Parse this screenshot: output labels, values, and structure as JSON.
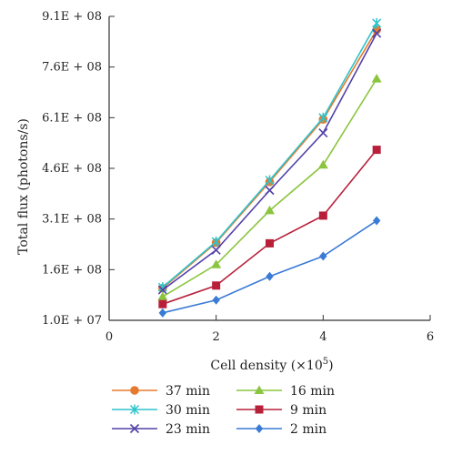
{
  "chart_data": {
    "type": "line",
    "title": "",
    "xlabel": "Cell density (×10",
    "xlabel_sup": "5",
    "xlabel_close": ")",
    "ylabel": "Total flux (photons/s)",
    "xlim": [
      0,
      6
    ],
    "ylim": [
      10000000,
      910000000
    ],
    "x_ticks": [
      0,
      2,
      4,
      6
    ],
    "x_tick_labels": [
      "0",
      "2",
      "4",
      "6"
    ],
    "y_ticks": [
      10000000,
      160000000,
      310000000,
      460000000,
      610000000,
      760000000,
      910000000
    ],
    "y_tick_labels": [
      "1.0E + 07",
      "1.6E + 08",
      "3.1E + 08",
      "4.6E + 08",
      "6.1E + 08",
      "7.6E + 08",
      "9.1E + 08"
    ],
    "grid": false,
    "legend_position": "bottom",
    "x": [
      1,
      2,
      3,
      4,
      5
    ],
    "series": [
      {
        "name": "37 min",
        "color": "#E57A2E",
        "marker": "circle",
        "values": [
          105000000,
          240000000,
          420000000,
          605000000,
          870000000
        ]
      },
      {
        "name": "30 min",
        "color": "#2EC4CC",
        "marker": "star",
        "values": [
          108000000,
          243000000,
          425000000,
          610000000,
          890000000
        ]
      },
      {
        "name": "23 min",
        "color": "#5242A8",
        "marker": "x",
        "values": [
          100000000,
          218000000,
          395000000,
          565000000,
          860000000
        ]
      },
      {
        "name": "16 min",
        "color": "#8BC53F",
        "marker": "triangle",
        "values": [
          80000000,
          175000000,
          335000000,
          470000000,
          725000000
        ]
      },
      {
        "name": "9 min",
        "color": "#B8203A",
        "marker": "square",
        "values": [
          58000000,
          113000000,
          238000000,
          320000000,
          515000000
        ]
      },
      {
        "name": "2 min",
        "color": "#3A7BD5",
        "marker": "diamond",
        "values": [
          32000000,
          70000000,
          140000000,
          200000000,
          305000000
        ]
      }
    ]
  }
}
